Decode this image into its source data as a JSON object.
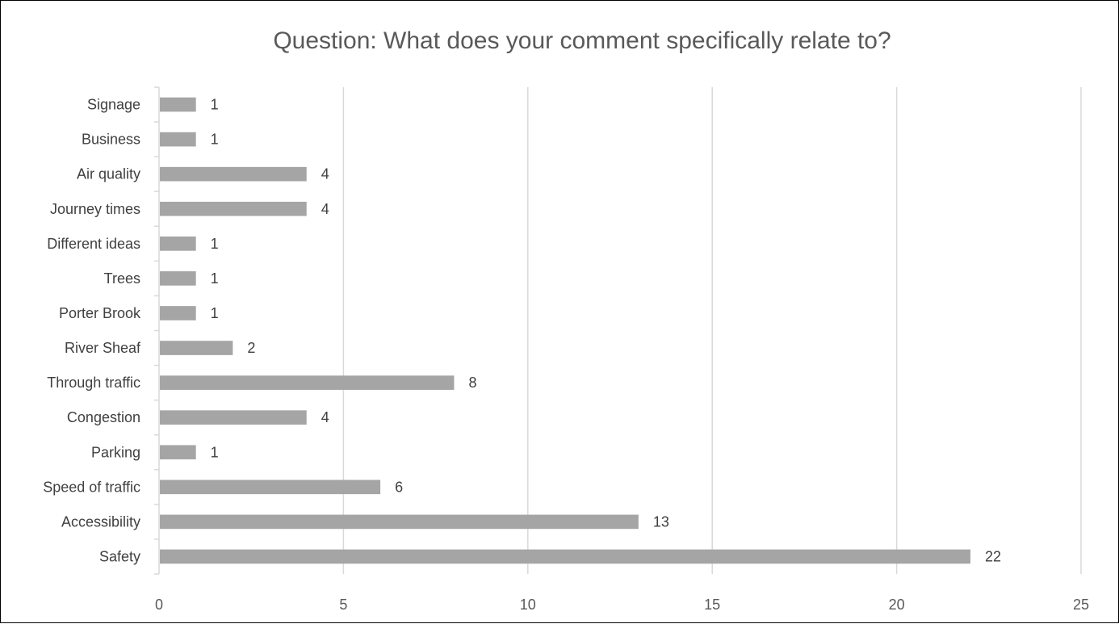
{
  "chart_data": {
    "type": "bar",
    "orientation": "horizontal",
    "title": "Question: What does your comment specifically relate to?",
    "categories": [
      "Signage",
      "Business",
      "Air quality",
      "Journey times",
      "Different ideas",
      "Trees",
      "Porter Brook",
      "River Sheaf",
      "Through traffic",
      "Congestion",
      "Parking",
      "Speed of traffic",
      "Accessibility",
      "Safety"
    ],
    "values": [
      1,
      1,
      4,
      4,
      1,
      1,
      1,
      2,
      8,
      4,
      1,
      6,
      13,
      22
    ],
    "xlim": [
      0,
      25
    ],
    "xticks": [
      0,
      5,
      10,
      15,
      20,
      25
    ],
    "grid": "vertical",
    "legend": "none",
    "bar_color": "#a5a5a5",
    "data_labels": true
  }
}
